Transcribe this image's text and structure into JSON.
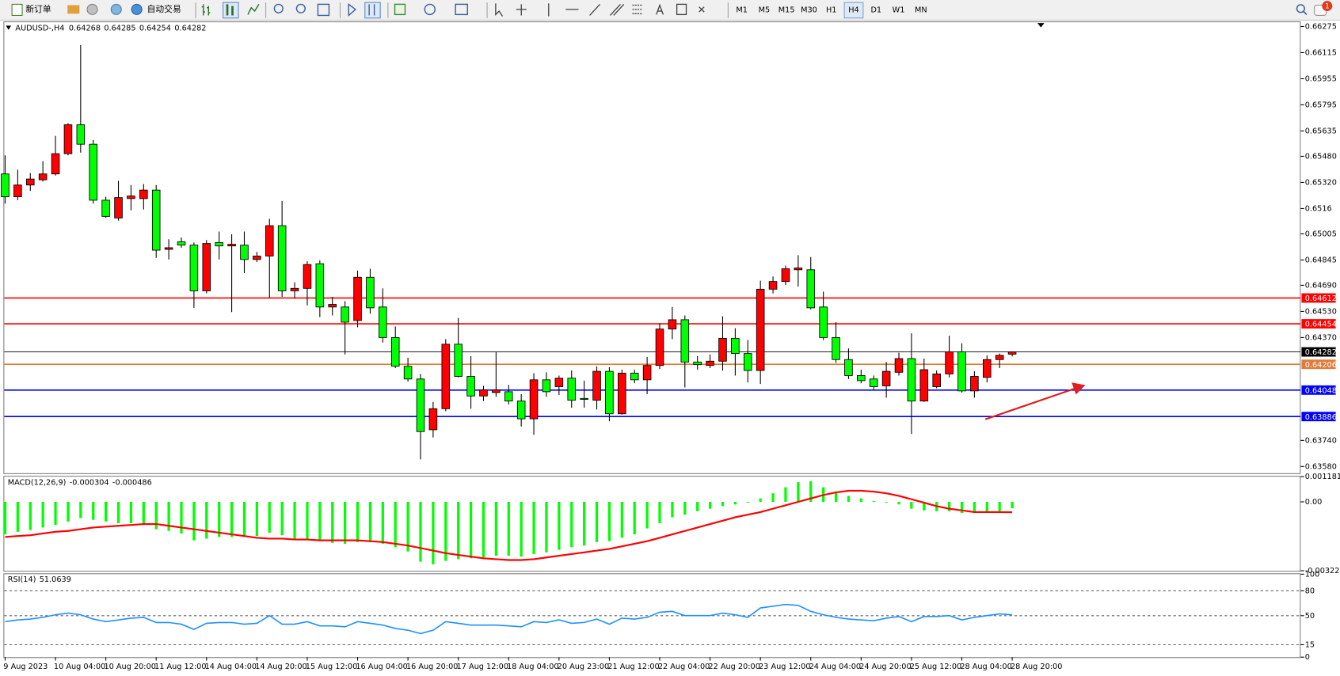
{
  "toolbar": {
    "buttons": [
      "新订单",
      "自动交易"
    ],
    "timeframes": [
      "M1",
      "M5",
      "M15",
      "M30",
      "H1",
      "H4",
      "D1",
      "W1",
      "MN"
    ],
    "active_timeframe": "H4",
    "notification_count": 1
  },
  "chart_data": [
    {
      "type": "candlestick",
      "title": "AUDUSD-,H4",
      "categories": [
        "9 Aug 2023",
        null,
        null,
        null,
        "10 Aug 04:00",
        null,
        null,
        null,
        "10 Aug 20:00",
        null,
        null,
        null,
        "11 Aug 12:00",
        null,
        null,
        null,
        "14 Aug 04:00",
        null,
        null,
        null,
        "14 Aug 20:00",
        null,
        null,
        null,
        "15 Aug 12:00",
        null,
        null,
        null,
        "16 Aug 04:00",
        null,
        null,
        null,
        "16 Aug 20:00",
        null,
        null,
        null,
        "17 Aug 12:00",
        null,
        null,
        null,
        "18 Aug 04:00",
        null,
        null,
        null,
        "20 Aug 23:00",
        null,
        null,
        null,
        "21 Aug 12:00",
        null,
        null,
        null,
        "22 Aug 04:00",
        null,
        null,
        null,
        "22 Aug 20:00",
        null,
        null,
        null,
        "23 Aug 12:00",
        null,
        null,
        null,
        "24 Aug 04:00",
        null,
        null,
        null,
        "24 Aug 20:00",
        null,
        null,
        null,
        "25 Aug 12:00",
        null,
        null,
        null,
        "28 Aug 04:00",
        null,
        null,
        null,
        "28 Aug 20:00"
      ],
      "open": [
        0.65372,
        0.65232,
        0.65304,
        0.65336,
        0.65372,
        0.65496,
        0.65673,
        0.65554,
        0.65211,
        0.65102,
        0.65221,
        0.65221,
        0.65273,
        0.6491,
        0.64957,
        0.64936,
        0.64656,
        0.64952,
        0.64931,
        0.64936,
        0.64848,
        0.64869,
        0.65055,
        0.64656,
        0.64671,
        0.64822,
        0.64557,
        0.64557,
        0.64474,
        0.64739,
        0.64557,
        0.6437,
        0.64194,
        0.64116,
        0.63805,
        0.63934,
        0.64329,
        0.64132,
        0.64012,
        0.64033,
        0.64038,
        0.63981,
        0.63872,
        0.64111,
        0.64069,
        0.64121,
        0.63997,
        0.63986,
        0.64163,
        0.63903,
        0.64152,
        0.64111,
        0.64199,
        0.64422,
        0.64479,
        0.6422,
        0.64199,
        0.64225,
        0.64365,
        0.64272,
        0.64168,
        0.64666,
        0.64713,
        0.64785,
        0.64785,
        0.64557,
        0.6437,
        0.64235,
        0.64137,
        0.64116,
        0.64074,
        0.64157,
        0.64241,
        0.63981,
        0.64069,
        0.64147,
        0.64282,
        0.64043,
        0.64126,
        0.64235,
        0.64268
      ],
      "high": [
        0.65486,
        0.65398,
        0.65377,
        0.6545,
        0.65605,
        0.65683,
        0.66161,
        0.6558,
        0.65232,
        0.6533,
        0.65304,
        0.6531,
        0.65304,
        0.64972,
        0.64983,
        0.64952,
        0.64967,
        0.65019,
        0.65003,
        0.65019,
        0.64894,
        0.65097,
        0.65206,
        0.64708,
        0.64837,
        0.64843,
        0.64619,
        0.64593,
        0.6478,
        0.64791,
        0.64671,
        0.64438,
        0.64246,
        0.64147,
        0.63976,
        0.6436,
        0.6449,
        0.64256,
        0.64074,
        0.64282,
        0.6408,
        0.64023,
        0.64152,
        0.64157,
        0.64137,
        0.64168,
        0.64106,
        0.64194,
        0.64189,
        0.64173,
        0.64173,
        0.64251,
        0.64458,
        0.64557,
        0.64505,
        0.64256,
        0.64266,
        0.645,
        0.64427,
        0.64355,
        0.64718,
        0.64744,
        0.64811,
        0.64874,
        0.64863,
        0.64651,
        0.64464,
        0.64303,
        0.64173,
        0.64137,
        0.6422,
        0.64277,
        0.64396,
        0.64241,
        0.64168,
        0.64381,
        0.64334,
        0.64163,
        0.64261,
        0.64272,
        0.64285
      ],
      "low": [
        0.6519,
        0.65211,
        0.65268,
        0.65325,
        0.65362,
        0.65486,
        0.65502,
        0.6519,
        0.65102,
        0.65086,
        0.65149,
        0.65154,
        0.64858,
        0.64848,
        0.6492,
        0.64552,
        0.6464,
        0.64848,
        0.64526,
        0.64765,
        0.64832,
        0.64614,
        0.64619,
        0.64609,
        0.64567,
        0.64495,
        0.64505,
        0.64266,
        0.64433,
        0.64516,
        0.64339,
        0.64183,
        0.641,
        0.63623,
        0.63758,
        0.63919,
        0.64126,
        0.63934,
        0.63981,
        0.64007,
        0.6396,
        0.63825,
        0.63774,
        0.64007,
        0.64017,
        0.6394,
        0.6394,
        0.63929,
        0.63857,
        0.63898,
        0.6409,
        0.64023,
        0.64178,
        0.6436,
        0.64064,
        0.64173,
        0.64183,
        0.64168,
        0.64137,
        0.64095,
        0.64085,
        0.6464,
        0.64692,
        0.64682,
        0.64542,
        0.64355,
        0.64215,
        0.64116,
        0.6409,
        0.64049,
        0.64002,
        0.64137,
        0.63779,
        0.63976,
        0.64059,
        0.64126,
        0.64033,
        0.64002,
        0.64095,
        0.64183,
        0.64254
      ],
      "close": [
        0.65232,
        0.65304,
        0.65341,
        0.65372,
        0.65496,
        0.65673,
        0.65554,
        0.65211,
        0.65112,
        0.65227,
        0.65237,
        0.65273,
        0.64905,
        0.6492,
        0.64936,
        0.64656,
        0.64946,
        0.64931,
        0.64941,
        0.64848,
        0.64869,
        0.65055,
        0.64656,
        0.64671,
        0.64817,
        0.64557,
        0.64573,
        0.64464,
        0.64739,
        0.64552,
        0.6437,
        0.64194,
        0.64116,
        0.63794,
        0.63934,
        0.64329,
        0.64132,
        0.64012,
        0.64049,
        0.64049,
        0.63981,
        0.63872,
        0.64111,
        0.64038,
        0.64121,
        0.63986,
        0.63991,
        0.64163,
        0.63903,
        0.64152,
        0.64111,
        0.64199,
        0.64422,
        0.64479,
        0.6422,
        0.64204,
        0.64225,
        0.64365,
        0.64272,
        0.64168,
        0.64666,
        0.64713,
        0.64791,
        0.64796,
        0.64552,
        0.6437,
        0.64235,
        0.64137,
        0.64106,
        0.64069,
        0.64163,
        0.64241,
        0.63981,
        0.64173,
        0.64147,
        0.64282,
        0.64043,
        0.64132,
        0.64235,
        0.64261,
        0.64282
      ],
      "up_color": "#ff0000",
      "down_color": "#00ff00",
      "outline_color": "#000000",
      "current_price_color": "#000000",
      "ylim": [
        0.63539,
        0.66301
      ],
      "yticks": [
        0.66275,
        0.66115,
        0.65955,
        0.65795,
        0.65635,
        {
          "value": 0.6548,
          "label": "0.65480"
        },
        {
          "value": 0.6532,
          "label": "0.65320"
        },
        0.6516,
        0.65005,
        0.64845,
        {
          "value": 0.6469,
          "label": "0.64690"
        },
        {
          "value": 0.6453,
          "label": "0.64530"
        },
        {
          "value": 0.6437,
          "label": "0.64370"
        },
        {
          "value": 0.6374,
          "label": "0.63740"
        },
        {
          "value": 0.6358,
          "label": "0.63580"
        }
      ],
      "levels": [
        {
          "value": 0.64612,
          "color": "#ff0000"
        },
        {
          "value": 0.64454,
          "color": "#ff0000"
        },
        {
          "value": 0.64206,
          "color": "#e07b39"
        },
        {
          "value": 0.64048,
          "color": "#0000ff"
        },
        {
          "value": 0.63886,
          "color": "#0000ff"
        }
      ]
    },
    {
      "type": "macd",
      "title": "MACD(12,26,9)",
      "histogram": [
        -0.001522,
        -0.001402,
        -0.001322,
        -0.001202,
        -0.001081,
        -0.000921,
        -0.000761,
        -0.000841,
        -0.000921,
        -0.001001,
        -0.001001,
        -0.001081,
        -0.001282,
        -0.001362,
        -0.001482,
        -0.001802,
        -0.001722,
        -0.001642,
        -0.001642,
        -0.001642,
        -0.001602,
        -0.001442,
        -0.001562,
        -0.001722,
        -0.001762,
        -0.001842,
        -0.001922,
        -0.001962,
        -0.001882,
        -0.001882,
        -0.001962,
        -0.002123,
        -0.002323,
        -0.002804,
        -0.002924,
        -0.002763,
        -0.002683,
        -0.002643,
        -0.002603,
        -0.002523,
        -0.002523,
        -0.002563,
        -0.002443,
        -0.002363,
        -0.002243,
        -0.002123,
        -0.002043,
        -0.001882,
        -0.001842,
        -0.001682,
        -0.001522,
        -0.001242,
        -0.001001,
        -0.000721,
        -0.000601,
        -0.000441,
        -0.00032,
        -0.0002,
        -0.00012,
        -4e-05,
        0.00016,
        0.000401,
        0.000681,
        0.000921,
        0.000961,
        0.000681,
        0.000481,
        0.00028,
        0.00016,
        4e-05,
        -4e-05,
        -0.00012,
        -0.00032,
        -0.000401,
        -0.000441,
        -0.000441,
        -0.000521,
        -0.000521,
        -0.000481,
        -0.000441,
        -0.000304
      ],
      "signal": [
        -0.001642,
        -0.001602,
        -0.001562,
        -0.001482,
        -0.001402,
        -0.001362,
        -0.001282,
        -0.001202,
        -0.001161,
        -0.001121,
        -0.001081,
        -0.001041,
        -0.001041,
        -0.001121,
        -0.001202,
        -0.001282,
        -0.001362,
        -0.001442,
        -0.001522,
        -0.001602,
        -0.001682,
        -0.001722,
        -0.001722,
        -0.001762,
        -0.001762,
        -0.001802,
        -0.001802,
        -0.001802,
        -0.001802,
        -0.001842,
        -0.001882,
        -0.001962,
        -0.002043,
        -0.002163,
        -0.002283,
        -0.002403,
        -0.002483,
        -0.002563,
        -0.002643,
        -0.002683,
        -0.002723,
        -0.002723,
        -0.002683,
        -0.002603,
        -0.002523,
        -0.002443,
        -0.002363,
        -0.002283,
        -0.002203,
        -0.002083,
        -0.001962,
        -0.001842,
        -0.001682,
        -0.001522,
        -0.001362,
        -0.001202,
        -0.001041,
        -0.000881,
        -0.000721,
        -0.000601,
        -0.000481,
        -0.00032,
        -0.00016,
        0,
        0.00016,
        0.00032,
        0.000441,
        0.000521,
        0.000521,
        0.000481,
        0.000401,
        0.00028,
        0.00012,
        -4e-05,
        -0.0002,
        -0.00032,
        -0.000401,
        -0.000481,
        -0.000481,
        -0.000481,
        -0.000486
      ],
      "histogram_color": "#00ff00",
      "signal_color": "#ff0000",
      "ylim": [
        -0.003225,
        0.001181
      ],
      "yticks": [
        0.001181,
        {
          "value": 0,
          "label": "0.00"
        },
        -0.003225
      ]
    },
    {
      "type": "line",
      "title": "RSI(14)",
      "values": [
        42.8,
        44.9,
        45.9,
        48.0,
        51.1,
        53.1,
        51.1,
        45.9,
        42.8,
        44.9,
        47.0,
        48.0,
        41.8,
        41.8,
        39.7,
        33.5,
        40.8,
        41.8,
        41.8,
        39.7,
        40.8,
        50.1,
        39.7,
        39.7,
        42.8,
        37.7,
        37.7,
        36.6,
        42.8,
        40.8,
        38.7,
        34.6,
        32.5,
        28.4,
        32.5,
        42.8,
        40.8,
        38.7,
        38.7,
        38.7,
        37.7,
        36.6,
        42.8,
        41.8,
        44.9,
        40.8,
        41.8,
        45.9,
        39.7,
        47.0,
        45.9,
        48.0,
        54.2,
        55.2,
        50.1,
        50.1,
        50.1,
        53.1,
        51.1,
        48.0,
        59.3,
        61.4,
        63.5,
        62.4,
        55.2,
        51.1,
        48.0,
        45.9,
        44.9,
        43.9,
        47.0,
        49.0,
        42.8,
        49.0,
        49.0,
        50.1,
        44.9,
        48.0,
        50.1,
        52.1,
        51.0639
      ],
      "color": "#1e90ff",
      "ylim": [
        0,
        100
      ],
      "yticks": [
        100,
        80,
        50,
        15,
        0
      ]
    }
  ]
}
